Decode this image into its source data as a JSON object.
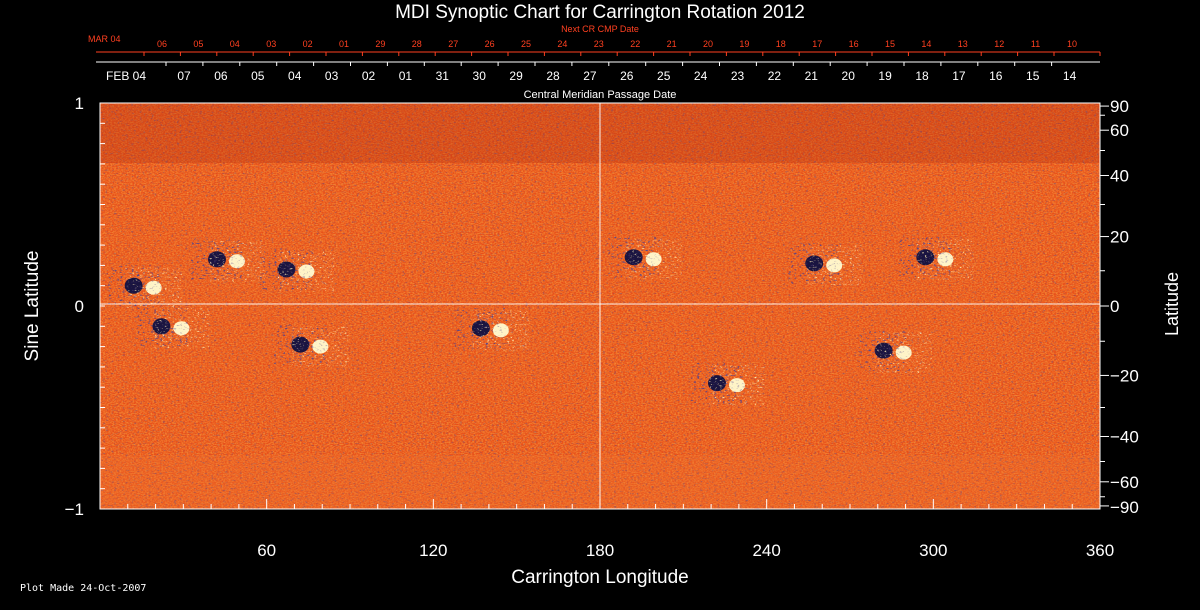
{
  "colors": {
    "background": "#000000",
    "text": "#ffffff",
    "next_cr_text": "#ff4020",
    "field_base": "#e8501a",
    "negative_polarity": "#1a1440",
    "positive_polarity": "#fff4c8",
    "grid": "#ffffff"
  },
  "chart_data": {
    "type": "heatmap",
    "title": "MDI Synoptic Chart for Carrington Rotation 2012",
    "xlabel": "Carrington Longitude",
    "ylabel_left": "Sine Latitude",
    "ylabel_right": "Latitude",
    "xlim": [
      0,
      360
    ],
    "ylim": [
      -1,
      1
    ],
    "x_ticks": [
      "60",
      "120",
      "180",
      "240",
      "300",
      "360"
    ],
    "y_ticks_left": [
      "1",
      "0",
      "−1"
    ],
    "y_ticks_right": [
      "90",
      "60",
      "40",
      "20",
      "0",
      "−20",
      "−40",
      "−60",
      "−90"
    ],
    "top_axis_next_cr": {
      "label": "Next CR CMP Date",
      "month_label": "MAR 04",
      "days": [
        "06",
        "05",
        "04",
        "03",
        "02",
        "01",
        "29",
        "28",
        "27",
        "26",
        "25",
        "24",
        "23",
        "22",
        "21",
        "20",
        "19",
        "18",
        "17",
        "16",
        "15",
        "14",
        "13",
        "12",
        "11",
        "10"
      ]
    },
    "top_axis_cmp": {
      "label": "Central Meridian Passage Date",
      "month_label": "FEB 04",
      "days": [
        "07",
        "06",
        "05",
        "04",
        "03",
        "02",
        "01",
        "31",
        "30",
        "29",
        "28",
        "27",
        "26",
        "25",
        "24",
        "23",
        "22",
        "21",
        "20",
        "19",
        "18",
        "17",
        "16",
        "15",
        "14"
      ]
    },
    "grid": "center lines at longitude 180 and sine latitude 0",
    "active_regions": [
      {
        "lon": 45,
        "sinlat": 0.23,
        "polarity": "mixed"
      },
      {
        "lon": 70,
        "sinlat": 0.18,
        "polarity": "mixed"
      },
      {
        "lon": 15,
        "sinlat": 0.1,
        "polarity": "mixed"
      },
      {
        "lon": 25,
        "sinlat": -0.1,
        "polarity": "mixed"
      },
      {
        "lon": 75,
        "sinlat": -0.19,
        "polarity": "mixed"
      },
      {
        "lon": 140,
        "sinlat": -0.11,
        "polarity": "mixed"
      },
      {
        "lon": 195,
        "sinlat": 0.24,
        "polarity": "mixed"
      },
      {
        "lon": 260,
        "sinlat": 0.21,
        "polarity": "mixed"
      },
      {
        "lon": 300,
        "sinlat": 0.24,
        "polarity": "mixed"
      },
      {
        "lon": 285,
        "sinlat": -0.22,
        "polarity": "mixed"
      },
      {
        "lon": 225,
        "sinlat": -0.38,
        "polarity": "mixed"
      }
    ]
  },
  "footer": {
    "plot_made": "Plot Made 24-Oct-2007"
  }
}
